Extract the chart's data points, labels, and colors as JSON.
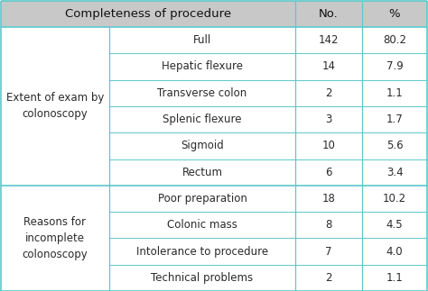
{
  "header": [
    "Completeness of procedure",
    "No.",
    "%"
  ],
  "col1_groups": [
    {
      "label": "Extent of exam by\ncolonoscopy",
      "rows": 6
    },
    {
      "label": "Reasons for\nincomplete\ncolonoscopy",
      "rows": 4
    }
  ],
  "col2_labels": [
    "Full",
    "Hepatic flexure",
    "Transverse colon",
    "Splenic flexure",
    "Sigmoid",
    "Rectum",
    "Poor preparation",
    "Colonic mass",
    "Intolerance to procedure",
    "Technical problems"
  ],
  "col_no": [
    "142",
    "14",
    "2",
    "3",
    "10",
    "6",
    "18",
    "8",
    "7",
    "2"
  ],
  "col_pct": [
    "80.2",
    "7.9",
    "1.1",
    "1.7",
    "5.6",
    "3.4",
    "10.2",
    "4.5",
    "4.0",
    "1.1"
  ],
  "header_bg": "#c8c8c8",
  "border_color": "#5bc8cc",
  "text_color": "#2a2a2a",
  "header_text_color": "#111111",
  "font_size": 8.5,
  "header_font_size": 9.5,
  "fig_width": 4.74,
  "fig_height": 3.23,
  "dpi": 100
}
